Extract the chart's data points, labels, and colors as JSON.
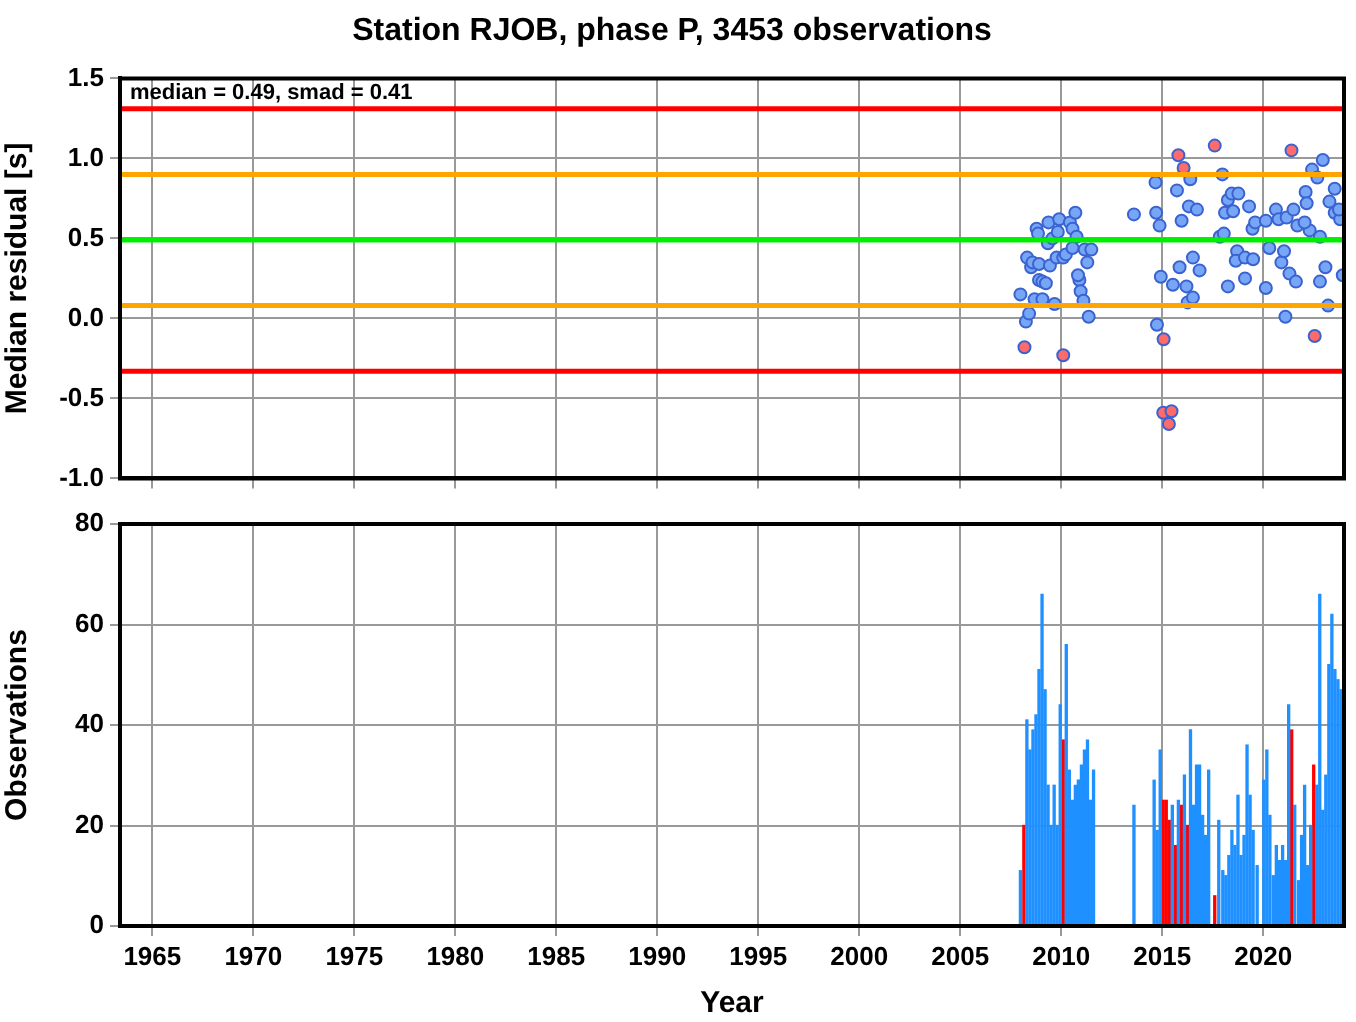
{
  "chart_data": [
    {
      "type": "scatter",
      "title": "Station RJOB, phase P, 3453 observations",
      "ylabel": "Median residual [s]",
      "annotations": [
        "median = 0.49, smad = 0.41"
      ],
      "marker": "circle",
      "grid": true,
      "tick_labels": "y",
      "xlim": [
        1963.4,
        2024
      ],
      "xticks": [
        1965,
        1970,
        1975,
        1980,
        1985,
        1990,
        1995,
        2000,
        2005,
        2010,
        2015,
        2020
      ],
      "ylim": [
        -1,
        1.5
      ],
      "yticks": [
        {
          "value": -1,
          "label": "-1.0"
        },
        -0.5,
        {
          "value": 0,
          "label": "0.0"
        },
        0.5,
        {
          "value": 1,
          "label": "1.0"
        },
        1.5
      ],
      "ref_lines": [
        {
          "axis": "y",
          "value": 1.31,
          "color": "#ff0000"
        },
        {
          "axis": "y",
          "value": 0.9,
          "color": "#ffa500"
        },
        {
          "axis": "y",
          "value": 0.49,
          "color": "#00ee00"
        },
        {
          "axis": "y",
          "value": 0.08,
          "color": "#ffa500"
        },
        {
          "axis": "y",
          "value": -0.33,
          "color": "#ff0000"
        }
      ],
      "series": [
        {
          "color": "#77a6f7",
          "x": [
            2007.98,
            2008.25,
            2008.41,
            2008.68,
            2009.07,
            2009.67,
            2008.9,
            2009.07,
            2009.24,
            2008.31,
            2008.51,
            2008.58,
            2008.9,
            2009.44,
            2009.77,
            2010.1,
            2010.23,
            2008.78,
            2008.85,
            2009.37,
            2009.9,
            2010.43,
            2010.7,
            2009.34,
            2009.57,
            2009.83,
            2010.56,
            2010.76,
            2010.56,
            2011.16,
            2011.49,
            2011.29,
            2010.9,
            2010.96,
            2011.1,
            2011.36,
            2010.83,
            2013.6,
            2014.67,
            2014.7,
            2014.87,
            2014.74,
            2014.93,
            2015.53,
            2015.86,
            2016.2,
            2016.26,
            2016.52,
            2016.52,
            2016.85,
            2015.73,
            2016.39,
            2016.32,
            2016.72,
            2015.96,
            2017.98,
            2018.25,
            2017.85,
            2018.05,
            2018.25,
            2018.44,
            2018.77,
            2018.11,
            2018.51,
            2019.3,
            2018.71,
            2018.64,
            2019.1,
            2019.5,
            2019.1,
            2019.47,
            2019.6,
            2020.13,
            2020.3,
            2020.13,
            2020.63,
            2020.76,
            2021.1,
            2020.9,
            2021.03,
            2021.3,
            2021.62,
            2021.16,
            2021.5,
            2021.69,
            2022.1,
            2022.15,
            2022.3,
            2022.05,
            2022.42,
            2022.68,
            2022.95,
            2022.81,
            2022.81,
            2023.08,
            2023.21,
            2023.28,
            2023.54,
            2023.54,
            2023.81,
            2023.94,
            2023.75
          ],
          "values": [
            0.15,
            -0.02,
            0.03,
            0.12,
            0.12,
            0.09,
            0.24,
            0.23,
            0.22,
            0.38,
            0.32,
            0.35,
            0.34,
            0.33,
            0.38,
            0.38,
            0.4,
            0.56,
            0.53,
            0.6,
            0.62,
            0.6,
            0.66,
            0.47,
            0.5,
            0.54,
            0.56,
            0.51,
            0.44,
            0.43,
            0.43,
            0.35,
            0.24,
            0.17,
            0.11,
            0.01,
            0.27,
            0.65,
            0.85,
            0.66,
            0.58,
            -0.04,
            0.26,
            0.21,
            0.32,
            0.2,
            0.1,
            0.13,
            0.38,
            0.3,
            0.8,
            0.87,
            0.7,
            0.68,
            0.61,
            0.9,
            0.2,
            0.51,
            0.53,
            0.74,
            0.78,
            0.78,
            0.66,
            0.67,
            0.7,
            0.42,
            0.36,
            0.38,
            0.37,
            0.25,
            0.56,
            0.6,
            0.61,
            0.44,
            0.19,
            0.68,
            0.62,
            0.01,
            0.35,
            0.42,
            0.28,
            0.23,
            0.63,
            0.68,
            0.58,
            0.79,
            0.72,
            0.55,
            0.6,
            0.93,
            0.88,
            0.99,
            0.51,
            0.23,
            0.32,
            0.08,
            0.73,
            0.81,
            0.66,
            0.62,
            0.27,
            0.68
          ]
        },
        {
          "color": "#ff6a6a",
          "x": [
            2008.18,
            2010.1,
            2015.8,
            2016.06,
            2017.6,
            2021.4,
            2015.07,
            2022.55,
            2015.05,
            2015.46,
            2015.33
          ],
          "values": [
            -0.18,
            -0.23,
            1.02,
            0.94,
            1.08,
            1.05,
            -0.13,
            -0.11,
            -0.59,
            -0.58,
            -0.66
          ]
        }
      ]
    },
    {
      "type": "bar",
      "xlabel": "Year",
      "ylabel": "Observations",
      "grid": true,
      "xlim": [
        1963.4,
        2024
      ],
      "xticks": [
        1965,
        1970,
        1975,
        1980,
        1985,
        1990,
        1995,
        2000,
        2005,
        2010,
        2015,
        2020
      ],
      "ylim": [
        0,
        80
      ],
      "yticks": [
        0,
        20,
        40,
        60,
        80
      ],
      "series": [
        {
          "color": "#1e90ff",
          "x": [
            2007.98,
            2008.3,
            2008.45,
            2008.6,
            2008.75,
            2008.9,
            2009.05,
            2009.2,
            2009.35,
            2009.5,
            2009.65,
            2009.8,
            2009.95,
            2010.25,
            2010.4,
            2010.55,
            2010.7,
            2010.85,
            2011.0,
            2011.15,
            2011.3,
            2011.45,
            2011.6,
            2013.6,
            2014.6,
            2014.75,
            2014.9,
            2015.5,
            2015.8,
            2016.1,
            2016.4,
            2016.55,
            2016.7,
            2016.85,
            2017.0,
            2017.15,
            2017.3,
            2017.8,
            2018.0,
            2018.15,
            2018.3,
            2018.45,
            2018.6,
            2018.75,
            2018.9,
            2019.05,
            2019.2,
            2019.35,
            2019.5,
            2019.7,
            2020.03,
            2020.18,
            2020.33,
            2020.5,
            2020.65,
            2020.8,
            2020.96,
            2021.11,
            2021.26,
            2021.56,
            2021.75,
            2021.9,
            2022.05,
            2022.2,
            2022.35,
            2022.65,
            2022.8,
            2022.95,
            2023.1,
            2023.25,
            2023.4,
            2023.55,
            2023.7,
            2023.85
          ],
          "values": [
            11,
            41,
            35,
            39,
            42,
            51,
            66,
            47,
            28,
            20,
            28,
            20,
            44,
            56,
            31,
            25,
            28,
            29,
            32,
            35,
            37,
            25,
            31,
            24,
            29,
            19,
            35,
            24,
            25,
            30,
            39,
            24,
            32,
            32,
            22,
            18,
            31,
            21,
            11,
            10,
            14,
            19,
            16,
            26,
            14,
            18,
            36,
            26,
            19,
            12,
            29,
            35,
            22,
            10,
            16,
            13,
            16,
            13,
            44,
            24,
            9,
            18,
            28,
            12,
            20,
            28,
            66,
            23,
            30,
            52,
            62,
            51,
            49,
            47
          ]
        },
        {
          "color": "#ff0000",
          "x": [
            2008.15,
            2010.1,
            2015.05,
            2015.2,
            2015.35,
            2015.65,
            2015.95,
            2016.25,
            2017.6,
            2021.41,
            2022.5
          ],
          "values": [
            20,
            37,
            25,
            25,
            21,
            16,
            24,
            20,
            6,
            39,
            32
          ]
        }
      ]
    }
  ]
}
